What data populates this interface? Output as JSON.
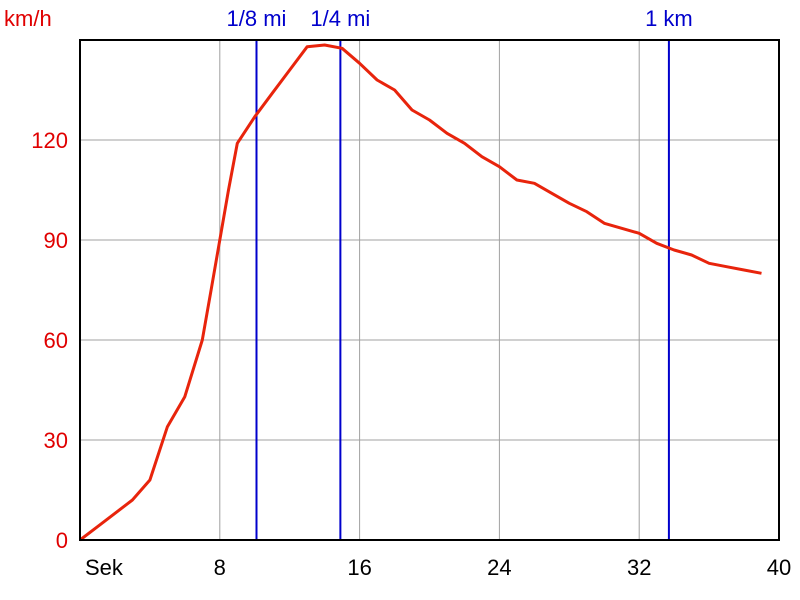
{
  "chart_data": {
    "type": "line",
    "ylabel": "km/h",
    "xlabel": "Sek",
    "xlim": [
      0,
      40
    ],
    "ylim": [
      0,
      150
    ],
    "x_ticks": [
      8,
      16,
      24,
      32,
      40
    ],
    "y_ticks": [
      0,
      30,
      60,
      90,
      120
    ],
    "grid": true,
    "colors": {
      "line": "#e8240c",
      "markers": "#0000cc",
      "grid": "#a0a0a0",
      "axis_labels_y": "#e00000"
    },
    "series": [
      {
        "x": [
          0,
          1,
          2,
          3,
          4,
          5,
          6,
          7,
          7.5,
          8,
          8.5,
          9,
          10,
          11,
          12,
          13,
          14,
          15,
          16,
          17,
          18,
          19,
          20,
          21,
          22,
          23,
          24,
          25,
          26,
          27,
          28,
          29,
          30,
          31,
          32,
          33,
          34,
          35,
          36,
          37,
          38,
          39
        ],
        "y": [
          0,
          4,
          8,
          12,
          18,
          34,
          43,
          60,
          75,
          90,
          105,
          119,
          127,
          134,
          141,
          148,
          148.5,
          147.5,
          143,
          138,
          135,
          129,
          126,
          122,
          119,
          115,
          112,
          108,
          107,
          104,
          101,
          98.5,
          95,
          93.5,
          92,
          89,
          87,
          85.5,
          83,
          82,
          81,
          80
        ]
      }
    ],
    "markers": [
      {
        "label": "1/8 mi",
        "x": 10.1
      },
      {
        "label": "1/4 mi",
        "x": 14.9
      },
      {
        "label": "1 km",
        "x": 33.7
      }
    ]
  }
}
